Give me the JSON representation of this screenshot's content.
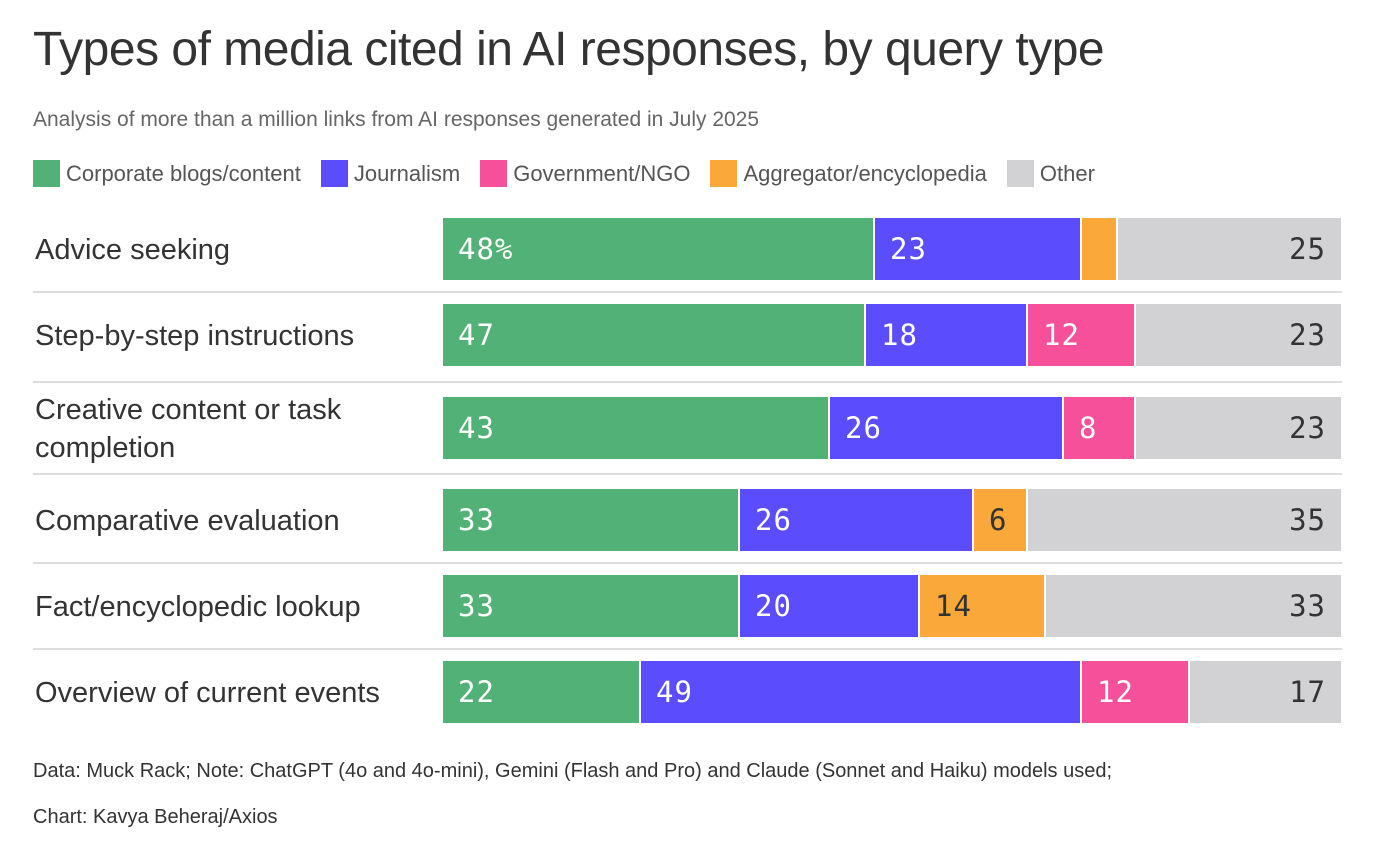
{
  "title": "Types of media cited in AI responses, by query type",
  "subtitle": "Analysis of more than a million links from AI responses generated in July 2025",
  "legend": [
    {
      "label": "Corporate blogs/content",
      "color": "#52b176"
    },
    {
      "label": "Journalism",
      "color": "#5b4cfd"
    },
    {
      "label": "Government/NGO",
      "color": "#f7509a"
    },
    {
      "label": "Aggregator/encyclopedia",
      "color": "#fba83b"
    },
    {
      "label": "Other",
      "color": "#d2d2d4"
    }
  ],
  "chart_data": {
    "type": "bar",
    "orientation": "horizontal",
    "stacked": true,
    "unit": "%",
    "title": "Types of media cited in AI responses, by query type",
    "categories": [
      "Advice seeking",
      "Step-by-step instructions",
      "Creative content or task completion",
      "Comparative evaluation",
      "Fact/encyclopedic lookup",
      "Overview of current events"
    ],
    "category_lines": [
      [
        "Advice seeking"
      ],
      [
        "Step-by-step instructions"
      ],
      [
        "Creative content or task",
        "completion"
      ],
      [
        "Comparative evaluation"
      ],
      [
        "Fact/encyclopedic lookup"
      ],
      [
        "Overview of current events"
      ]
    ],
    "series": [
      {
        "name": "Corporate blogs/content",
        "color": "#52b176",
        "values": [
          48,
          47,
          43,
          33,
          33,
          22
        ],
        "labels": [
          "48%",
          "47",
          "43",
          "33",
          "33",
          "22"
        ],
        "label_color": "#ffffff"
      },
      {
        "name": "Journalism",
        "color": "#5b4cfd",
        "values": [
          23,
          18,
          26,
          26,
          20,
          49
        ],
        "labels": [
          "23",
          "18",
          "26",
          "26",
          "20",
          "49"
        ],
        "label_color": "#ffffff"
      },
      {
        "name": "Government/NGO",
        "color": "#f7509a",
        "values": [
          0,
          12,
          8,
          0,
          0,
          12
        ],
        "labels": [
          "",
          "12",
          "8",
          "",
          "",
          "12"
        ],
        "label_color": "#ffffff"
      },
      {
        "name": "Aggregator/encyclopedia",
        "color": "#fba83b",
        "values": [
          4,
          0,
          0,
          6,
          14,
          0
        ],
        "labels": [
          "",
          "",
          "",
          "6",
          "14",
          ""
        ],
        "label_color": "#333333"
      },
      {
        "name": "Other",
        "color": "#d2d2d4",
        "values": [
          25,
          23,
          23,
          35,
          33,
          17
        ],
        "labels": [
          "25",
          "23",
          "23",
          "35",
          "33",
          "17"
        ],
        "label_color": "#333333"
      }
    ],
    "xlim": [
      0,
      100
    ]
  },
  "notes": {
    "line1": "Data: Muck Rack; Note: ChatGPT (4o and 4o-mini), Gemini (Flash and Pro) and Claude (Sonnet and Haiku) models used;",
    "line2": "Chart: Kavya Beheraj/Axios"
  }
}
